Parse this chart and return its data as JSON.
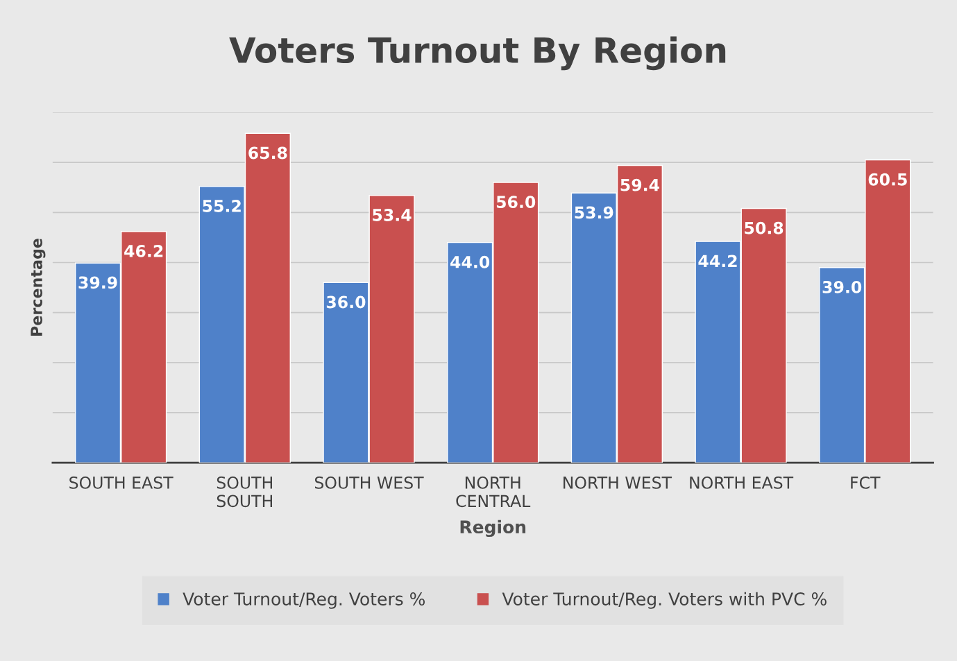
{
  "chart_data": {
    "type": "bar",
    "title": "Voters Turnout By Region",
    "xlabel": "Region",
    "ylabel": "Percentage",
    "categories": [
      "SOUTH EAST",
      "SOUTH\nSOUTH",
      "SOUTH WEST",
      "NORTH\nCENTRAL",
      "NORTH WEST",
      "NORTH EAST",
      "FCT"
    ],
    "series": [
      {
        "name": "Voter Turnout/Reg. Voters %",
        "color": "#4f81c9",
        "values": [
          39.9,
          55.2,
          36.0,
          44.0,
          53.9,
          44.2,
          39.0
        ],
        "value_labels": [
          "39.9",
          "55.2",
          "36.0",
          "44.0",
          "53.9",
          "44.2",
          "39.0"
        ]
      },
      {
        "name": "Voter Turnout/Reg. Voters with PVC %",
        "color": "#c9504f",
        "values": [
          46.2,
          65.8,
          53.4,
          56.0,
          59.4,
          50.8,
          60.5
        ],
        "value_labels": [
          "46.2",
          "65.8",
          "53.4",
          "56.0",
          "59.4",
          "50.8",
          "60.5"
        ]
      }
    ],
    "ylim": [
      0,
      70
    ],
    "yticks": [
      {
        "value": 0,
        "label": null
      },
      {
        "value": 10,
        "label": null
      },
      {
        "value": 20,
        "label": null
      },
      {
        "value": 30,
        "label": null
      },
      {
        "value": 40,
        "label": null
      },
      {
        "value": 50,
        "label": null
      },
      {
        "value": 60,
        "label": null
      },
      {
        "value": 70,
        "label": null
      }
    ],
    "grid": "y",
    "legend": "bottom"
  }
}
